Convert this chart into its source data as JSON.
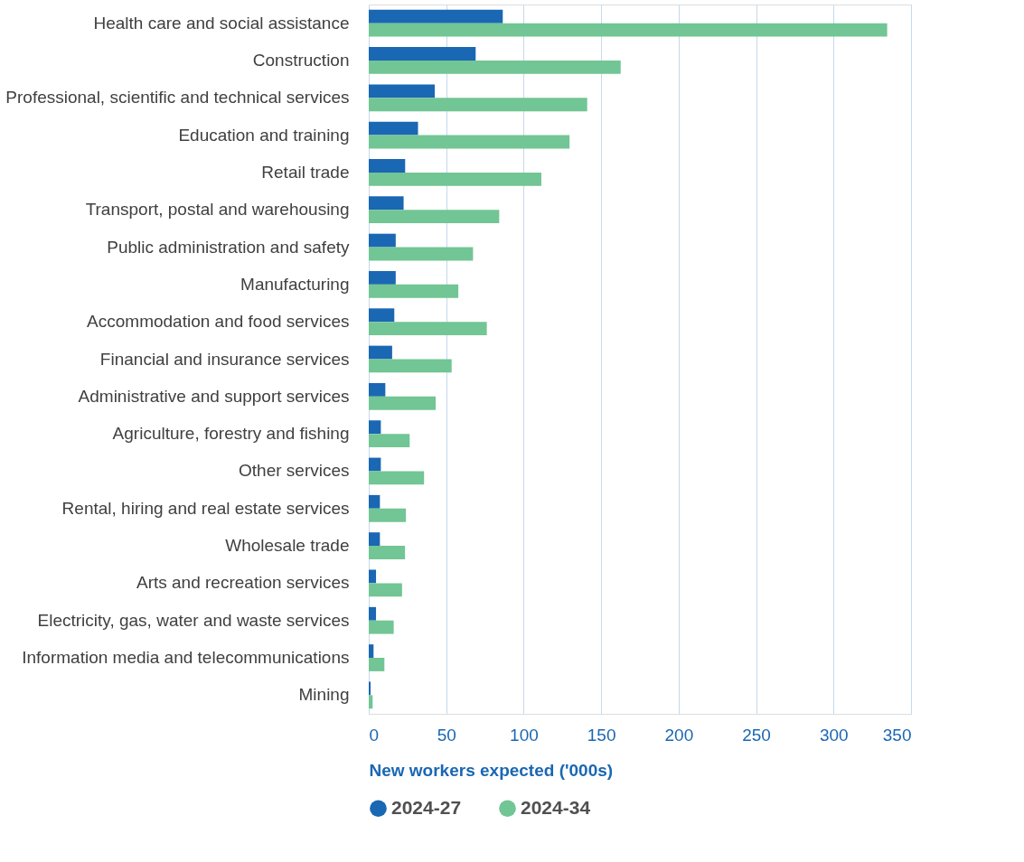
{
  "chart_data": {
    "type": "bar",
    "orientation": "horizontal",
    "xlabel": "New workers expected ('000s)",
    "categories": [
      "Health care and social assistance",
      "Construction",
      "Professional, scientific and technical services",
      "Education and training",
      "Retail trade",
      "Transport, postal and warehousing",
      "Public administration and safety",
      "Manufacturing",
      "Accommodation and food services",
      "Financial and insurance services",
      "Administrative and support services",
      "Agriculture, forestry and fishing",
      "Other services",
      "Rental, hiring and real estate services",
      "Wholesale trade",
      "Arts and recreation services",
      "Electricity, gas, water and waste services",
      "Information media and telecommunications",
      "Mining"
    ],
    "series": [
      {
        "name": "2024-27",
        "color": "#1a67b3",
        "values": [
          86.5,
          69,
          42.6,
          31.8,
          23.5,
          22.5,
          17.4,
          17.4,
          16.5,
          15.1,
          10.7,
          7.8,
          7.8,
          7.2,
          7.2,
          4.7,
          4.7,
          3.1,
          1.2
        ]
      },
      {
        "name": "2024-34",
        "color": "#72c594",
        "values": [
          334.6,
          162.6,
          141,
          129.6,
          111.4,
          84.2,
          67.3,
          57.8,
          76.2,
          53.5,
          43.2,
          26.4,
          35.7,
          24,
          23.4,
          21.5,
          16.1,
          10.1,
          2.5
        ]
      }
    ],
    "xlim": [
      0,
      350
    ],
    "xticks": [
      0,
      50,
      100,
      150,
      200,
      250,
      300,
      350
    ],
    "grid": "x",
    "legend": "bottom"
  }
}
